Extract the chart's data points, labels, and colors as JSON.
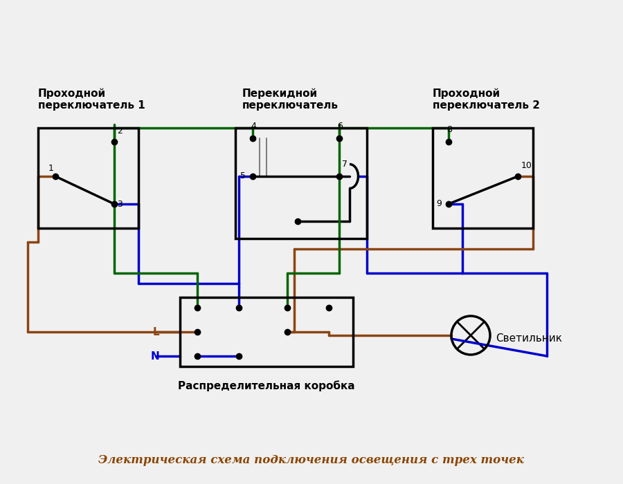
{
  "title": "Электрическая схема подключения освещения с трех точек",
  "label_sw1": "Проходной\nпереключатель 1",
  "label_sw2": "Перекидной\nпереключатель",
  "label_sw3": "Проходной\nпереключатель 2",
  "label_box": "Распределительная коробка",
  "label_lamp": "Светильник",
  "label_L": "L",
  "label_N": "N",
  "bg_color": "#f0f0f0",
  "wire_black": "#000000",
  "wire_brown": "#8B4513",
  "wire_green": "#006400",
  "wire_blue": "#0000CD",
  "wire_gray": "#808080",
  "title_color": "#8B4500"
}
